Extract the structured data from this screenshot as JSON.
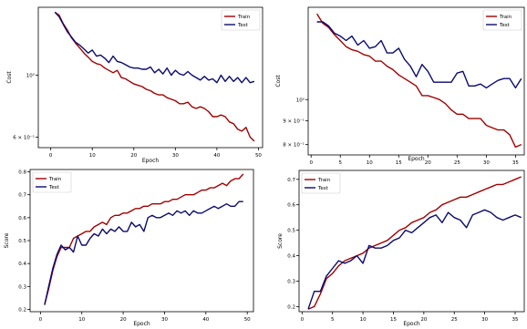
{
  "chart_data": [
    {
      "type": "line",
      "xlabel": "Epoch",
      "ylabel": "Cost",
      "yscale": "log",
      "xlim": [
        -3,
        51
      ],
      "ylim": [
        0.55,
        1.75
      ],
      "xticks": [
        0,
        10,
        20,
        30,
        40,
        50
      ],
      "yticks": [
        1.0,
        0.6
      ],
      "ytick_labels": [
        "10⁰",
        "6 × 10⁻¹"
      ],
      "legend": "top-right",
      "grid": false,
      "x": [
        1,
        2,
        3,
        4,
        5,
        6,
        7,
        8,
        9,
        10,
        11,
        12,
        13,
        14,
        15,
        16,
        17,
        18,
        19,
        20,
        21,
        22,
        23,
        24,
        25,
        26,
        27,
        28,
        29,
        30,
        31,
        32,
        33,
        34,
        35,
        36,
        37,
        38,
        39,
        40,
        41,
        42,
        43,
        44,
        45,
        46,
        47,
        48,
        49
      ],
      "series": [
        {
          "name": "Train",
          "color": "#a00000",
          "values": [
            1.68,
            1.64,
            1.53,
            1.45,
            1.36,
            1.3,
            1.25,
            1.2,
            1.16,
            1.12,
            1.1,
            1.09,
            1.06,
            1.04,
            1.02,
            1.04,
            0.98,
            0.97,
            0.95,
            0.93,
            0.92,
            0.91,
            0.89,
            0.88,
            0.86,
            0.85,
            0.85,
            0.83,
            0.82,
            0.81,
            0.79,
            0.79,
            0.8,
            0.77,
            0.76,
            0.77,
            0.76,
            0.74,
            0.71,
            0.71,
            0.72,
            0.71,
            0.68,
            0.67,
            0.64,
            0.63,
            0.65,
            0.6,
            0.58
          ]
        },
        {
          "name": "Test",
          "color": "#0a0a6e",
          "values": [
            1.68,
            1.62,
            1.52,
            1.43,
            1.37,
            1.31,
            1.28,
            1.24,
            1.2,
            1.23,
            1.17,
            1.18,
            1.15,
            1.11,
            1.17,
            1.12,
            1.11,
            1.09,
            1.07,
            1.06,
            1.06,
            1.05,
            1.05,
            1.07,
            1.02,
            1.05,
            1.01,
            1.06,
            1.0,
            1.04,
            1.01,
            1.0,
            1.03,
            1.0,
            0.98,
            0.96,
            0.99,
            0.96,
            0.97,
            0.94,
            1.0,
            0.95,
            0.99,
            0.95,
            0.98,
            0.94,
            0.98,
            0.94,
            0.95
          ]
        }
      ]
    },
    {
      "type": "line",
      "xlabel": "Epoch",
      "ylabel": "Cost",
      "yscale": "log",
      "xlim": [
        -0.5,
        36.5
      ],
      "ylim": [
        0.76,
        1.58
      ],
      "xticks": [
        0,
        5,
        10,
        15,
        20,
        25,
        30,
        35
      ],
      "yticks": [
        1.0,
        0.9,
        0.8
      ],
      "ytick_labels": [
        "10⁰",
        "9 × 10⁻¹",
        "8 × 10⁻¹"
      ],
      "legend": "top-right",
      "grid": false,
      "x": [
        1,
        2,
        3,
        4,
        5,
        6,
        7,
        8,
        9,
        10,
        11,
        12,
        13,
        14,
        15,
        16,
        17,
        18,
        19,
        20,
        21,
        22,
        23,
        24,
        25,
        26,
        27,
        28,
        29,
        30,
        31,
        32,
        33,
        34,
        35,
        36
      ],
      "series": [
        {
          "name": "Train",
          "color": "#a00000",
          "values": [
            1.53,
            1.46,
            1.43,
            1.38,
            1.34,
            1.3,
            1.28,
            1.27,
            1.25,
            1.24,
            1.21,
            1.21,
            1.18,
            1.16,
            1.13,
            1.11,
            1.09,
            1.07,
            1.02,
            1.02,
            1.01,
            1.0,
            0.98,
            0.95,
            0.93,
            0.93,
            0.91,
            0.91,
            0.91,
            0.88,
            0.87,
            0.86,
            0.86,
            0.84,
            0.79,
            0.8
          ]
        },
        {
          "name": "Test",
          "color": "#0a0a6e",
          "values": [
            1.47,
            1.47,
            1.44,
            1.39,
            1.37,
            1.34,
            1.37,
            1.31,
            1.34,
            1.29,
            1.3,
            1.34,
            1.26,
            1.26,
            1.29,
            1.22,
            1.18,
            1.12,
            1.19,
            1.15,
            1.09,
            1.09,
            1.09,
            1.09,
            1.14,
            1.15,
            1.07,
            1.07,
            1.08,
            1.06,
            1.08,
            1.1,
            1.11,
            1.11,
            1.06,
            1.11
          ]
        }
      ]
    },
    {
      "type": "line",
      "xlabel": "Epoch",
      "ylabel": "Score",
      "xlim": [
        -2.5,
        51.5
      ],
      "ylim": [
        0.19,
        0.81
      ],
      "xticks": [
        0,
        10,
        20,
        30,
        40,
        50
      ],
      "yticks": [
        0.2,
        0.3,
        0.4,
        0.5,
        0.6,
        0.7,
        0.8
      ],
      "ytick_labels": [
        "0.2",
        "0.3",
        "0.4",
        "0.5",
        "0.6",
        "0.7",
        "0.8"
      ],
      "legend": "top-left",
      "grid": false,
      "x": [
        1,
        2,
        3,
        4,
        5,
        6,
        7,
        8,
        9,
        10,
        11,
        12,
        13,
        14,
        15,
        16,
        17,
        18,
        19,
        20,
        21,
        22,
        23,
        24,
        25,
        26,
        27,
        28,
        29,
        30,
        31,
        32,
        33,
        34,
        35,
        36,
        37,
        38,
        39,
        40,
        41,
        42,
        43,
        44,
        45,
        46,
        47,
        48,
        49
      ],
      "series": [
        {
          "name": "Train",
          "color": "#a00000",
          "values": [
            0.22,
            0.29,
            0.37,
            0.43,
            0.47,
            0.47,
            0.47,
            0.51,
            0.52,
            0.53,
            0.54,
            0.54,
            0.56,
            0.57,
            0.58,
            0.57,
            0.6,
            0.61,
            0.61,
            0.62,
            0.62,
            0.63,
            0.64,
            0.64,
            0.65,
            0.65,
            0.66,
            0.66,
            0.66,
            0.67,
            0.67,
            0.68,
            0.68,
            0.69,
            0.7,
            0.7,
            0.7,
            0.71,
            0.72,
            0.72,
            0.73,
            0.73,
            0.74,
            0.75,
            0.74,
            0.76,
            0.77,
            0.77,
            0.79
          ]
        },
        {
          "name": "Test",
          "color": "#0a0a6e",
          "values": [
            0.22,
            0.3,
            0.38,
            0.44,
            0.48,
            0.46,
            0.47,
            0.45,
            0.52,
            0.48,
            0.48,
            0.51,
            0.53,
            0.52,
            0.55,
            0.53,
            0.55,
            0.54,
            0.56,
            0.54,
            0.54,
            0.58,
            0.56,
            0.57,
            0.54,
            0.6,
            0.61,
            0.6,
            0.6,
            0.61,
            0.62,
            0.61,
            0.63,
            0.62,
            0.63,
            0.61,
            0.63,
            0.62,
            0.62,
            0.63,
            0.64,
            0.65,
            0.64,
            0.65,
            0.66,
            0.65,
            0.65,
            0.67,
            0.67
          ]
        }
      ]
    },
    {
      "type": "line",
      "xlabel": "Epoch",
      "ylabel": "Score",
      "xlim": [
        -0.5,
        36.5
      ],
      "ylim": [
        0.18,
        0.735
      ],
      "xticks": [
        0,
        5,
        10,
        15,
        20,
        25,
        30,
        35
      ],
      "yticks": [
        0.2,
        0.3,
        0.4,
        0.5,
        0.6,
        0.7
      ],
      "ytick_labels": [
        "0.2",
        "0.3",
        "0.4",
        "0.5",
        "0.6",
        "0.7"
      ],
      "legend": "top-left",
      "grid": false,
      "x": [
        1,
        2,
        3,
        4,
        5,
        6,
        7,
        8,
        9,
        10,
        11,
        12,
        13,
        14,
        15,
        16,
        17,
        18,
        19,
        20,
        21,
        22,
        23,
        24,
        25,
        26,
        27,
        28,
        29,
        30,
        31,
        32,
        33,
        34,
        35,
        36
      ],
      "series": [
        {
          "name": "Train",
          "color": "#a00000",
          "values": [
            0.19,
            0.2,
            0.25,
            0.31,
            0.33,
            0.36,
            0.38,
            0.39,
            0.4,
            0.41,
            0.43,
            0.44,
            0.45,
            0.46,
            0.48,
            0.5,
            0.51,
            0.53,
            0.54,
            0.55,
            0.57,
            0.58,
            0.6,
            0.61,
            0.62,
            0.63,
            0.63,
            0.64,
            0.65,
            0.66,
            0.67,
            0.68,
            0.68,
            0.69,
            0.7,
            0.71
          ]
        },
        {
          "name": "Test",
          "color": "#0a0a6e",
          "values": [
            0.19,
            0.26,
            0.26,
            0.32,
            0.35,
            0.38,
            0.37,
            0.38,
            0.4,
            0.37,
            0.44,
            0.43,
            0.43,
            0.44,
            0.46,
            0.47,
            0.5,
            0.49,
            0.51,
            0.53,
            0.55,
            0.56,
            0.53,
            0.57,
            0.55,
            0.54,
            0.51,
            0.56,
            0.57,
            0.58,
            0.57,
            0.55,
            0.54,
            0.55,
            0.56,
            0.55
          ]
        }
      ]
    }
  ]
}
